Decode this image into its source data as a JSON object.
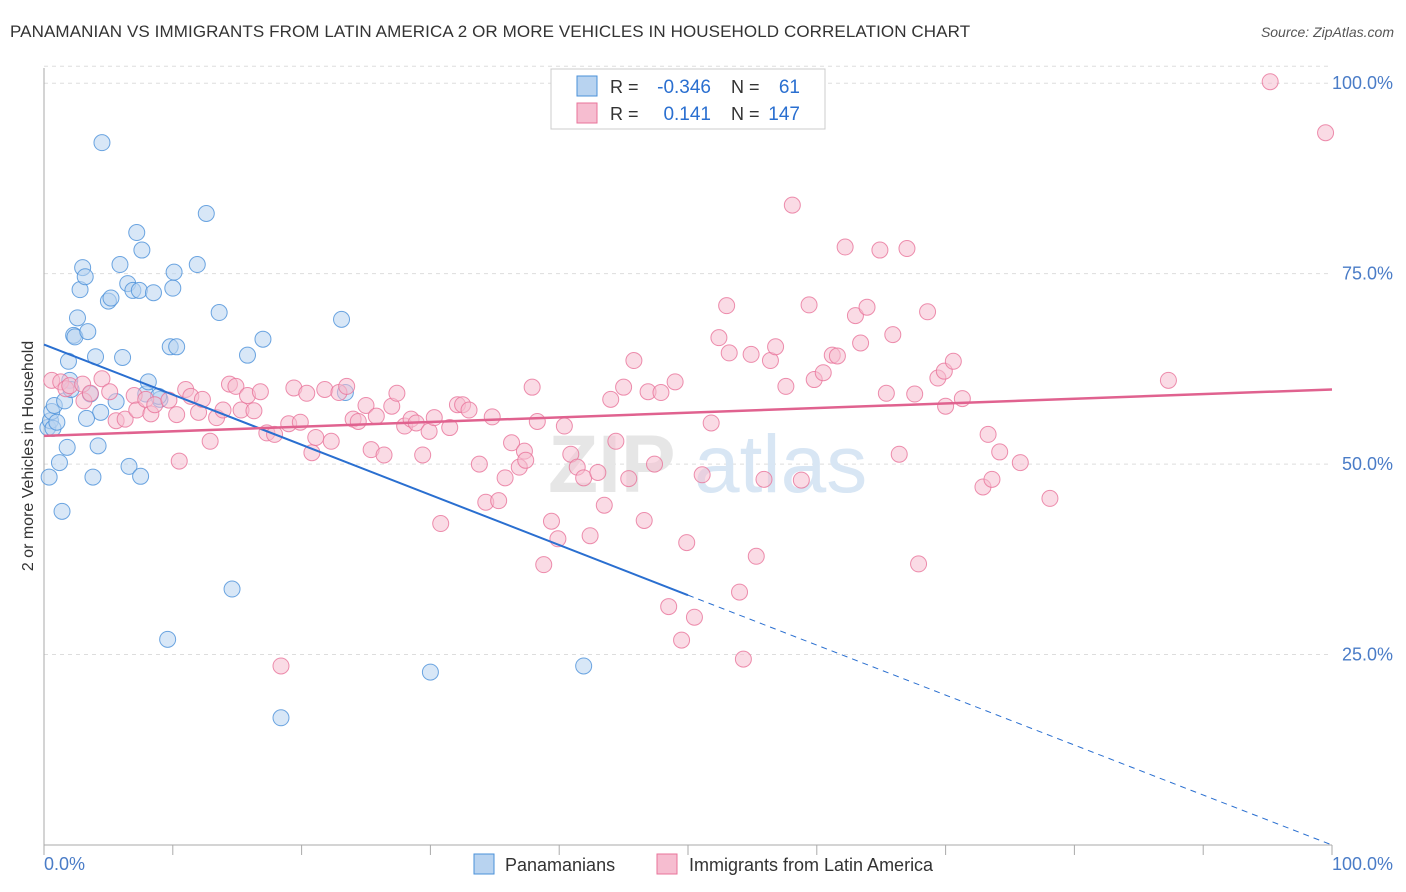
{
  "title": "PANAMANIAN VS IMMIGRANTS FROM LATIN AMERICA 2 OR MORE VEHICLES IN HOUSEHOLD CORRELATION CHART",
  "source": "Source: ZipAtlas.com",
  "watermark": {
    "part1": "ZIP",
    "part2": "atlas"
  },
  "colors": {
    "blue": "#4a90d9",
    "blue_fill": "#b8d3f0",
    "blue_line": "#2a6fd0",
    "pink": "#e8739a",
    "pink_fill": "#f6bdd0",
    "pink_line": "#e0628f",
    "axis_label": "#4a7cc7",
    "grid": "#dddddd"
  },
  "legend_top": {
    "rows": [
      {
        "r_label": "R =",
        "r_value": "-0.346",
        "n_label": "N =",
        "n_value": "61"
      },
      {
        "r_label": "R =",
        "r_value": "0.141",
        "n_label": "N =",
        "n_value": "147"
      }
    ]
  },
  "chart_data": {
    "type": "scatter",
    "xlabel": "",
    "ylabel": "2 or more Vehicles in Household",
    "xlim": [
      0,
      100
    ],
    "ylim": [
      0,
      102
    ],
    "x_ticks": [
      "0.0%",
      "100.0%"
    ],
    "y_ticks": [
      {
        "value": 25,
        "label": "25.0%"
      },
      {
        "value": 50,
        "label": "50.0%"
      },
      {
        "value": 75,
        "label": "75.0%"
      },
      {
        "value": 100,
        "label": "100.0%"
      }
    ],
    "grid": true,
    "legend_position": "bottom",
    "series": [
      {
        "name": "Panamanians",
        "color": "#4a90d9",
        "trend": {
          "x0": 0,
          "y0": 65.7,
          "x1": 50,
          "y1": 32.8,
          "dashed_to_x": 100,
          "dashed_to_y": 0
        },
        "points": [
          [
            0.3,
            54.8
          ],
          [
            0.4,
            48.3
          ],
          [
            0.5,
            55.7
          ],
          [
            0.6,
            56.9
          ],
          [
            0.7,
            54.7
          ],
          [
            0.8,
            57.7
          ],
          [
            1.0,
            55.5
          ],
          [
            1.2,
            50.2
          ],
          [
            1.4,
            43.8
          ],
          [
            1.6,
            58.3
          ],
          [
            1.8,
            52.2
          ],
          [
            1.9,
            63.5
          ],
          [
            2.0,
            61.0
          ],
          [
            2.1,
            59.8
          ],
          [
            2.3,
            66.9
          ],
          [
            2.4,
            66.7
          ],
          [
            2.6,
            69.2
          ],
          [
            2.8,
            72.9
          ],
          [
            3.0,
            75.8
          ],
          [
            3.2,
            74.6
          ],
          [
            3.4,
            67.4
          ],
          [
            3.6,
            59.2
          ],
          [
            3.8,
            48.3
          ],
          [
            4.0,
            64.1
          ],
          [
            4.2,
            52.4
          ],
          [
            4.4,
            56.8
          ],
          [
            4.5,
            92.2
          ],
          [
            5.0,
            71.4
          ],
          [
            5.2,
            71.8
          ],
          [
            5.6,
            58.2
          ],
          [
            5.9,
            76.2
          ],
          [
            6.1,
            64.0
          ],
          [
            6.5,
            73.7
          ],
          [
            6.6,
            49.7
          ],
          [
            6.9,
            72.8
          ],
          [
            7.2,
            80.4
          ],
          [
            7.4,
            72.8
          ],
          [
            7.5,
            48.4
          ],
          [
            7.6,
            78.1
          ],
          [
            7.9,
            59.2
          ],
          [
            8.1,
            60.8
          ],
          [
            8.5,
            72.5
          ],
          [
            9.0,
            58.5
          ],
          [
            9.6,
            27.0
          ],
          [
            9.8,
            65.4
          ],
          [
            10.0,
            73.1
          ],
          [
            10.1,
            75.2
          ],
          [
            10.3,
            65.4
          ],
          [
            11.9,
            76.2
          ],
          [
            12.6,
            82.9
          ],
          [
            13.6,
            69.9
          ],
          [
            14.6,
            33.6
          ],
          [
            15.8,
            64.3
          ],
          [
            17.0,
            66.4
          ],
          [
            18.4,
            16.7
          ],
          [
            23.1,
            69.0
          ],
          [
            23.4,
            59.4
          ],
          [
            30.0,
            22.7
          ],
          [
            41.9,
            23.5
          ],
          [
            8.9,
            58.9
          ],
          [
            3.3,
            56.0
          ]
        ]
      },
      {
        "name": "Immigrants from Latin America",
        "color": "#e8739a",
        "trend": {
          "x0": 0,
          "y0": 53.7,
          "x1": 100,
          "y1": 59.8
        },
        "points": [
          [
            0.6,
            61.0
          ],
          [
            1.3,
            60.8
          ],
          [
            1.7,
            59.9
          ],
          [
            2.0,
            60.3
          ],
          [
            3.0,
            60.5
          ],
          [
            3.1,
            58.3
          ],
          [
            3.6,
            59.3
          ],
          [
            4.5,
            61.2
          ],
          [
            5.1,
            59.5
          ],
          [
            5.6,
            55.7
          ],
          [
            6.3,
            55.9
          ],
          [
            7.0,
            59.0
          ],
          [
            7.2,
            57.1
          ],
          [
            7.9,
            58.5
          ],
          [
            8.3,
            56.6
          ],
          [
            8.6,
            57.8
          ],
          [
            9.7,
            58.4
          ],
          [
            10.3,
            56.5
          ],
          [
            10.5,
            50.4
          ],
          [
            11.0,
            59.8
          ],
          [
            11.4,
            58.9
          ],
          [
            12.0,
            56.8
          ],
          [
            12.3,
            58.5
          ],
          [
            12.9,
            53.0
          ],
          [
            13.4,
            56.1
          ],
          [
            13.9,
            57.1
          ],
          [
            14.4,
            60.5
          ],
          [
            14.9,
            60.2
          ],
          [
            15.3,
            57.1
          ],
          [
            15.8,
            59.0
          ],
          [
            16.3,
            57.0
          ],
          [
            16.8,
            59.5
          ],
          [
            17.3,
            54.1
          ],
          [
            17.9,
            53.9
          ],
          [
            18.4,
            23.5
          ],
          [
            19.0,
            55.3
          ],
          [
            19.4,
            60.0
          ],
          [
            19.9,
            55.5
          ],
          [
            20.4,
            59.3
          ],
          [
            20.8,
            51.5
          ],
          [
            21.1,
            53.5
          ],
          [
            21.8,
            59.8
          ],
          [
            22.3,
            53.0
          ],
          [
            22.9,
            59.4
          ],
          [
            23.5,
            60.2
          ],
          [
            24.0,
            55.9
          ],
          [
            24.4,
            55.6
          ],
          [
            25.0,
            57.7
          ],
          [
            25.4,
            51.9
          ],
          [
            25.8,
            56.3
          ],
          [
            26.4,
            51.2
          ],
          [
            27.0,
            57.6
          ],
          [
            27.4,
            59.3
          ],
          [
            28.0,
            55.0
          ],
          [
            28.5,
            55.9
          ],
          [
            28.9,
            55.4
          ],
          [
            29.4,
            51.2
          ],
          [
            29.9,
            54.3
          ],
          [
            30.3,
            56.1
          ],
          [
            30.8,
            42.2
          ],
          [
            31.5,
            54.8
          ],
          [
            32.1,
            57.8
          ],
          [
            32.5,
            57.8
          ],
          [
            33.0,
            57.1
          ],
          [
            33.8,
            50.0
          ],
          [
            34.3,
            45.0
          ],
          [
            34.8,
            56.2
          ],
          [
            35.3,
            45.2
          ],
          [
            35.8,
            48.2
          ],
          [
            36.3,
            52.8
          ],
          [
            36.9,
            49.6
          ],
          [
            37.3,
            51.7
          ],
          [
            37.9,
            60.1
          ],
          [
            38.3,
            55.6
          ],
          [
            38.8,
            36.8
          ],
          [
            39.4,
            42.5
          ],
          [
            39.9,
            40.2
          ],
          [
            40.4,
            55.0
          ],
          [
            40.9,
            51.3
          ],
          [
            41.4,
            49.6
          ],
          [
            41.9,
            48.2
          ],
          [
            42.4,
            40.6
          ],
          [
            43.0,
            48.9
          ],
          [
            43.5,
            44.6
          ],
          [
            44.0,
            58.5
          ],
          [
            44.4,
            53.0
          ],
          [
            45.0,
            60.1
          ],
          [
            45.4,
            48.1
          ],
          [
            45.8,
            63.6
          ],
          [
            46.6,
            42.6
          ],
          [
            46.9,
            59.5
          ],
          [
            47.4,
            50.0
          ],
          [
            47.9,
            59.4
          ],
          [
            48.5,
            31.3
          ],
          [
            49.0,
            60.8
          ],
          [
            49.5,
            26.9
          ],
          [
            49.9,
            39.7
          ],
          [
            50.5,
            29.9
          ],
          [
            51.1,
            48.6
          ],
          [
            51.8,
            55.4
          ],
          [
            52.4,
            66.6
          ],
          [
            53.0,
            70.8
          ],
          [
            53.2,
            64.6
          ],
          [
            54.0,
            33.2
          ],
          [
            54.3,
            24.4
          ],
          [
            54.9,
            64.4
          ],
          [
            55.3,
            37.9
          ],
          [
            55.9,
            48.0
          ],
          [
            56.4,
            63.6
          ],
          [
            56.8,
            65.4
          ],
          [
            57.6,
            60.2
          ],
          [
            58.1,
            84.0
          ],
          [
            58.8,
            47.9
          ],
          [
            59.4,
            70.9
          ],
          [
            59.8,
            61.1
          ],
          [
            60.5,
            62.0
          ],
          [
            61.2,
            64.3
          ],
          [
            61.6,
            64.2
          ],
          [
            62.2,
            78.5
          ],
          [
            63.0,
            69.5
          ],
          [
            63.4,
            65.9
          ],
          [
            63.9,
            70.6
          ],
          [
            64.9,
            78.1
          ],
          [
            65.4,
            59.3
          ],
          [
            65.9,
            67.0
          ],
          [
            66.4,
            51.3
          ],
          [
            67.0,
            78.3
          ],
          [
            67.6,
            59.2
          ],
          [
            67.9,
            36.9
          ],
          [
            68.6,
            70.0
          ],
          [
            69.4,
            61.3
          ],
          [
            69.9,
            62.2
          ],
          [
            70.0,
            57.6
          ],
          [
            70.6,
            63.5
          ],
          [
            71.3,
            58.6
          ],
          [
            72.9,
            47.0
          ],
          [
            73.3,
            53.9
          ],
          [
            73.6,
            48.0
          ],
          [
            74.2,
            51.6
          ],
          [
            75.8,
            50.2
          ],
          [
            78.1,
            45.5
          ],
          [
            87.3,
            61.0
          ],
          [
            95.2,
            100.2
          ],
          [
            99.5,
            93.5
          ],
          [
            37.4,
            50.5
          ]
        ]
      }
    ]
  },
  "legend_bottom": {
    "items": [
      "Panamanians",
      "Immigrants from Latin America"
    ]
  }
}
